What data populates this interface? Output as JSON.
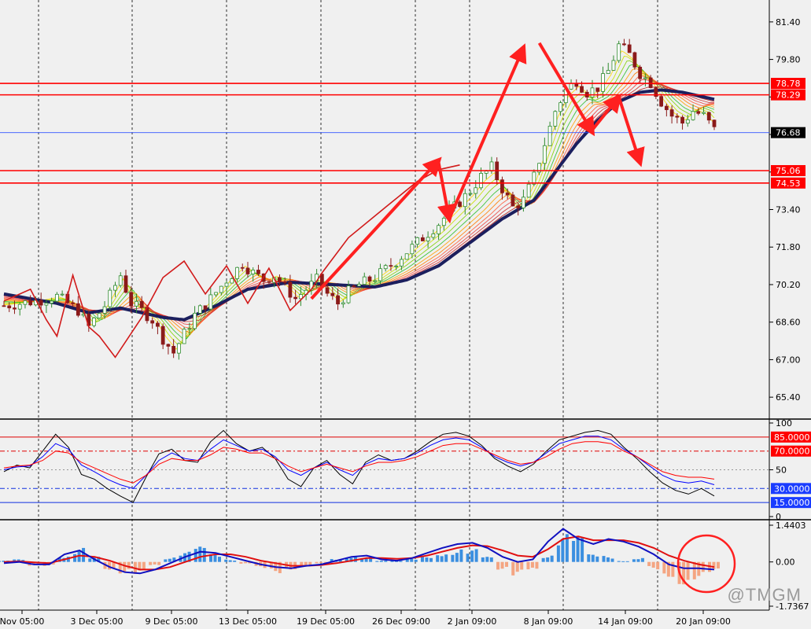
{
  "watermark": "@TMGM",
  "colors": {
    "background": "#f0f0f0",
    "grid": "#000000",
    "hline": "#ff0000",
    "current_line": "#3355ff",
    "bull_candle": "#2e8b2e",
    "bear_candle": "#8b1a1a",
    "ribbon_slow": "#1b1f5e",
    "arrow": "#ff2020",
    "tag_bg_red": "#ff0000",
    "tag_bg_dark": "#000000",
    "tag_bg_blue": "#1a3cff",
    "macd_pos": "#3b8fe0",
    "macd_neg": "#f4a582",
    "stoch_main": "#000000",
    "stoch_signal": "#0000ff",
    "stoch_third": "#ff0000"
  },
  "chart_data": [
    {
      "type": "candlestick",
      "panel": "price",
      "ylim": [
        64.5,
        82.2
      ],
      "y_ticks": [
        "81.40",
        "79.80",
        "78.20",
        "76.60",
        "75.00",
        "73.40",
        "71.80",
        "70.20",
        "68.60",
        "67.00",
        "65.40"
      ],
      "x_labels": [
        "Nov 05:00",
        "3 Dec 05:00",
        "9 Dec 05:00",
        "13 Dec 05:00",
        "19 Dec 05:00",
        "26 Dec 09:00",
        "2 Jan 09:00",
        "8 Jan 09:00",
        "14 Jan 09:00",
        "20 Jan 09:00"
      ],
      "close_path": [
        [
          0,
          69.3
        ],
        [
          6,
          69.5
        ],
        [
          10,
          69.7
        ],
        [
          14,
          69.1
        ],
        [
          16,
          68.4
        ],
        [
          19,
          69.3
        ],
        [
          22,
          70.6
        ],
        [
          24,
          69.4
        ],
        [
          26,
          69.1
        ],
        [
          28,
          68.7
        ],
        [
          30,
          67.9
        ],
        [
          32,
          67.3
        ],
        [
          34,
          68.1
        ],
        [
          36,
          68.9
        ],
        [
          39,
          69.6
        ],
        [
          42,
          70.4
        ],
        [
          45,
          71.1
        ],
        [
          47,
          70.7
        ],
        [
          49,
          70.4
        ],
        [
          51,
          70.6
        ],
        [
          53,
          70.1
        ],
        [
          55,
          69.6
        ],
        [
          57,
          70.0
        ],
        [
          59,
          70.4
        ],
        [
          61,
          69.8
        ],
        [
          63,
          69.4
        ],
        [
          65,
          69.9
        ],
        [
          67,
          70.2
        ],
        [
          70,
          70.5
        ],
        [
          74,
          71.2
        ],
        [
          78,
          72.0
        ],
        [
          82,
          72.8
        ],
        [
          85,
          73.5
        ],
        [
          88,
          74.2
        ],
        [
          90,
          74.8
        ],
        [
          92,
          75.2
        ],
        [
          94,
          74.3
        ],
        [
          96,
          73.5
        ],
        [
          98,
          73.8
        ],
        [
          100,
          74.8
        ],
        [
          102,
          76.2
        ],
        [
          104,
          77.6
        ],
        [
          106,
          78.5
        ],
        [
          108,
          78.9
        ],
        [
          110,
          78.4
        ],
        [
          112,
          78.6
        ],
        [
          114,
          79.3
        ],
        [
          116,
          80.4
        ],
        [
          118,
          80.0
        ],
        [
          120,
          79.2
        ],
        [
          122,
          78.8
        ],
        [
          124,
          78.0
        ],
        [
          126,
          77.4
        ],
        [
          128,
          77.1
        ],
        [
          130,
          77.6
        ],
        [
          132,
          77.4
        ],
        [
          134,
          76.8
        ]
      ],
      "ma_slow_path": [
        [
          0,
          69.8
        ],
        [
          10,
          69.4
        ],
        [
          16,
          69.0
        ],
        [
          22,
          69.2
        ],
        [
          30,
          68.8
        ],
        [
          34,
          68.7
        ],
        [
          40,
          69.3
        ],
        [
          46,
          70.0
        ],
        [
          54,
          70.3
        ],
        [
          62,
          70.2
        ],
        [
          70,
          70.1
        ],
        [
          76,
          70.4
        ],
        [
          82,
          71.0
        ],
        [
          88,
          72.0
        ],
        [
          94,
          73.0
        ],
        [
          100,
          73.8
        ],
        [
          104,
          75.0
        ],
        [
          108,
          76.2
        ],
        [
          112,
          77.2
        ],
        [
          116,
          78.0
        ],
        [
          120,
          78.4
        ],
        [
          124,
          78.5
        ],
        [
          128,
          78.4
        ],
        [
          134,
          78.1
        ]
      ],
      "hlines": [
        {
          "value": 78.78,
          "label": "78.78",
          "style": "red"
        },
        {
          "value": 78.29,
          "label": "78.29",
          "style": "red"
        },
        {
          "value": 76.68,
          "label": "76.68",
          "style": "current"
        },
        {
          "value": 75.06,
          "label": "75.06",
          "style": "red"
        },
        {
          "value": 74.53,
          "label": "74.53",
          "style": "red"
        }
      ],
      "zigzag": [
        [
          0,
          69.5
        ],
        [
          5,
          70.0
        ],
        [
          8,
          68.7
        ],
        [
          10,
          68.0
        ],
        [
          13,
          70.6
        ],
        [
          16,
          68.4
        ],
        [
          18,
          68.0
        ],
        [
          21,
          67.1
        ],
        [
          26,
          68.8
        ],
        [
          30,
          70.5
        ],
        [
          34,
          71.2
        ],
        [
          38,
          69.8
        ],
        [
          42,
          71.0
        ],
        [
          46,
          69.4
        ],
        [
          50,
          70.9
        ],
        [
          54,
          69.1
        ],
        [
          58,
          70.0
        ],
        [
          60,
          70.7
        ],
        [
          65,
          72.2
        ],
        [
          72,
          73.5
        ],
        [
          78,
          74.6
        ],
        [
          82,
          75.1
        ],
        [
          86,
          75.3
        ]
      ],
      "arrows": [
        {
          "from": [
            58,
            69.6
          ],
          "to": [
            82,
            75.5
          ]
        },
        {
          "from": [
            82,
            75.4
          ],
          "to": [
            84,
            73.0
          ]
        },
        {
          "from": [
            84,
            73.0
          ],
          "to": [
            98,
            80.3
          ]
        },
        {
          "from": [
            101,
            80.5
          ],
          "to": [
            111,
            76.7
          ]
        },
        {
          "from": [
            111,
            76.8
          ],
          "to": [
            116,
            78.2
          ]
        },
        {
          "from": [
            116,
            78.2
          ],
          "to": [
            120,
            75.4
          ]
        }
      ]
    },
    {
      "type": "line",
      "panel": "oscillator",
      "ylim": [
        0,
        100
      ],
      "y_ticks": [
        "100",
        "50",
        "0"
      ],
      "levels": [
        {
          "value": 85,
          "label": "85.0000",
          "color": "red"
        },
        {
          "value": 70,
          "label": "70.0000",
          "color": "red"
        },
        {
          "value": 30,
          "label": "30.0000",
          "color": "blue"
        },
        {
          "value": 15,
          "label": "15.0000",
          "color": "blue"
        }
      ],
      "series": [
        {
          "values": [
            48,
            55,
            52,
            70,
            88,
            74,
            45,
            40,
            30,
            22,
            15,
            42,
            67,
            72,
            60,
            58,
            80,
            92,
            78,
            70,
            74,
            62,
            40,
            32,
            52,
            60,
            45,
            35,
            58,
            66,
            60,
            62,
            70,
            80,
            88,
            90,
            86,
            76,
            62,
            54,
            48,
            56,
            70,
            82,
            86,
            90,
            92,
            88,
            74,
            62,
            48,
            36,
            28,
            24,
            30,
            22
          ]
        },
        {
          "values": [
            50,
            53,
            54,
            64,
            78,
            72,
            55,
            48,
            40,
            34,
            30,
            44,
            60,
            68,
            62,
            60,
            72,
            82,
            76,
            70,
            72,
            64,
            50,
            44,
            52,
            58,
            50,
            44,
            56,
            62,
            60,
            62,
            68,
            76,
            82,
            84,
            82,
            74,
            64,
            58,
            54,
            58,
            68,
            78,
            82,
            86,
            86,
            82,
            72,
            64,
            54,
            44,
            38,
            36,
            38,
            34
          ]
        },
        {
          "values": [
            52,
            54,
            55,
            60,
            70,
            68,
            58,
            52,
            46,
            40,
            36,
            44,
            56,
            62,
            60,
            60,
            66,
            74,
            72,
            68,
            68,
            62,
            54,
            48,
            52,
            56,
            52,
            48,
            54,
            58,
            58,
            60,
            64,
            70,
            76,
            78,
            78,
            72,
            66,
            60,
            56,
            58,
            64,
            72,
            78,
            80,
            80,
            78,
            70,
            64,
            56,
            48,
            44,
            42,
            42,
            40
          ]
        }
      ]
    },
    {
      "type": "bar",
      "panel": "macd",
      "ylim": [
        -1.7367,
        1.4403
      ],
      "y_ticks": [
        "1.4403",
        "0.00",
        "-1.7367"
      ],
      "histogram": [
        0.05,
        0.1,
        -0.15,
        -0.2,
        0.3,
        0.6,
        0.2,
        -0.3,
        -0.45,
        -0.55,
        -0.2,
        0.2,
        0.4,
        0.6,
        0.3,
        0.1,
        -0.1,
        -0.3,
        -0.45,
        -0.3,
        -0.15,
        -0.05,
        0.15,
        0.3,
        0.2,
        0.05,
        0.05,
        0.15,
        0.3,
        0.45,
        0.55,
        0.5,
        0.2,
        -0.3,
        -0.6,
        -0.45,
        0.3,
        1.1,
        1.0,
        0.3,
        0.25,
        0.05,
        0.2,
        -0.3,
        -0.6,
        -0.9,
        -0.7,
        -0.5
      ],
      "macd_line": [
        -0.05,
        0.0,
        -0.1,
        -0.1,
        0.3,
        0.45,
        0.1,
        -0.2,
        -0.4,
        -0.45,
        -0.3,
        -0.05,
        0.2,
        0.4,
        0.35,
        0.2,
        0.05,
        -0.1,
        -0.2,
        -0.25,
        -0.15,
        -0.1,
        0.05,
        0.2,
        0.25,
        0.1,
        0.05,
        0.15,
        0.35,
        0.55,
        0.7,
        0.75,
        0.55,
        0.2,
        0.0,
        0.1,
        0.8,
        1.3,
        0.9,
        0.7,
        0.9,
        0.8,
        0.6,
        0.3,
        -0.1,
        -0.25,
        -0.25,
        -0.3
      ],
      "signal_line": [
        0.0,
        0.02,
        -0.02,
        -0.05,
        0.1,
        0.25,
        0.2,
        0.05,
        -0.15,
        -0.3,
        -0.3,
        -0.2,
        0.0,
        0.2,
        0.3,
        0.3,
        0.2,
        0.05,
        -0.05,
        -0.15,
        -0.15,
        -0.12,
        -0.05,
        0.05,
        0.15,
        0.15,
        0.12,
        0.15,
        0.25,
        0.4,
        0.55,
        0.65,
        0.62,
        0.45,
        0.25,
        0.2,
        0.5,
        0.9,
        1.0,
        0.85,
        0.85,
        0.85,
        0.75,
        0.55,
        0.25,
        0.05,
        -0.1,
        -0.2
      ]
    }
  ]
}
